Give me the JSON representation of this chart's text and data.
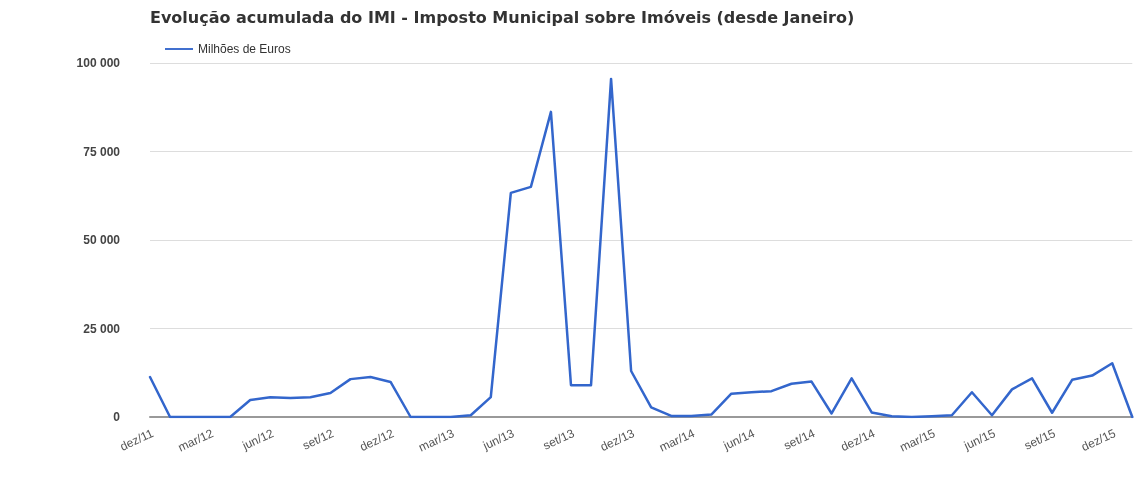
{
  "chart_data": {
    "type": "line",
    "title": "Evolução acumulada do IMI - Imposto Municipal sobre Imóveis (desde Janeiro)",
    "categories": [
      "dez/11",
      null,
      null,
      "mar/12",
      null,
      null,
      "jun/12",
      null,
      null,
      "set/12",
      null,
      null,
      "dez/12",
      null,
      null,
      "mar/13",
      null,
      null,
      "jun/13",
      null,
      null,
      "set/13",
      null,
      null,
      "dez/13",
      null,
      null,
      "mar/14",
      null,
      null,
      "jun/14",
      null,
      null,
      "set/14",
      null,
      null,
      "dez/14",
      null,
      null,
      "mar/15",
      null,
      null,
      "jun/15",
      null,
      null,
      "set/15",
      null,
      null,
      "dez/15",
      null
    ],
    "series": [
      {
        "name": "Milhões de Euros",
        "color": "#3366cc",
        "values": [
          11300,
          0,
          0,
          0,
          0,
          4800,
          5600,
          5400,
          5600,
          6800,
          10700,
          11300,
          9900,
          0,
          0,
          0,
          500,
          5600,
          63300,
          65000,
          86200,
          9000,
          9000,
          95500,
          13000,
          2700,
          300,
          300,
          700,
          6600,
          7000,
          7300,
          9400,
          10000,
          1000,
          10900,
          1300,
          200,
          0,
          200,
          500,
          7000,
          500,
          7800,
          10900,
          1200,
          10500,
          11700,
          15200,
          0
        ]
      }
    ],
    "ylim": [
      0,
      100000
    ],
    "yticks": [
      0,
      25000,
      50000,
      75000,
      100000
    ],
    "grid": "y",
    "legend": "top left",
    "marker": "none",
    "line_style": "solid"
  }
}
